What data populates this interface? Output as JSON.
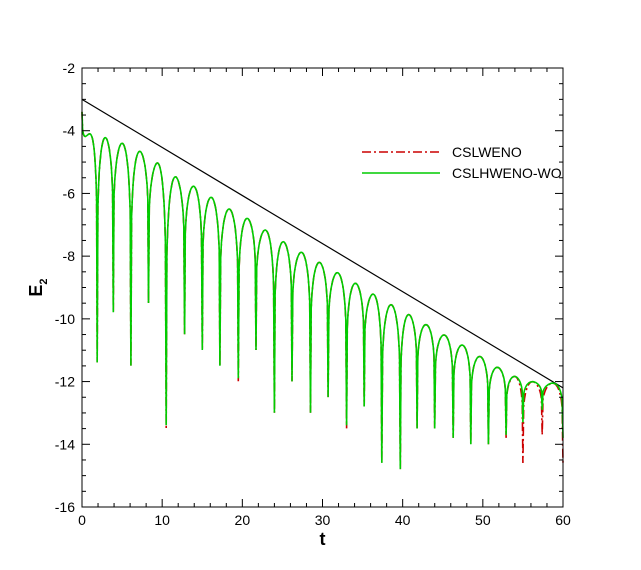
{
  "chart_data": {
    "type": "line",
    "title": "",
    "xlabel": "t",
    "ylabel_main": "E",
    "ylabel_sub": "2",
    "xlim": [
      0,
      60
    ],
    "ylim": [
      -16,
      -2
    ],
    "xticks": [
      0,
      10,
      20,
      30,
      40,
      50,
      60
    ],
    "yticks": [
      -16,
      -14,
      -12,
      -10,
      -8,
      -6,
      -4,
      -2
    ],
    "x_minor_step": 2,
    "y_minor_step": 0.5,
    "grid": false,
    "legend_position": "top-right",
    "series": [
      {
        "name": "",
        "role": "reference-line",
        "color": "#000000",
        "style": "solid",
        "x": [
          0,
          60
        ],
        "y": [
          -3.0,
          -12.2
        ]
      },
      {
        "name": "CSLWENO",
        "color": "#cc0000",
        "style": "dashdot",
        "peaks_x": [
          1.5,
          5.0,
          8.0,
          11.5,
          14.5,
          18.0,
          21.0,
          24.5,
          27.5,
          31.0,
          34.0,
          37.5,
          41.0,
          44.0,
          47.5,
          50.5,
          53.5,
          56.0,
          58.5
        ],
        "peaks_y": [
          -4.1,
          -4.4,
          -4.75,
          -5.45,
          -5.85,
          -6.45,
          -6.85,
          -7.45,
          -7.9,
          -8.4,
          -8.85,
          -9.4,
          -9.9,
          -10.35,
          -10.85,
          -11.35,
          -11.8,
          -12.0,
          -12.05
        ],
        "dips_x": [
          0,
          1.9,
          3.9,
          6.1,
          8.3,
          10.5,
          12.8,
          15.0,
          17.2,
          19.5,
          21.7,
          24.0,
          26.2,
          28.5,
          30.7,
          33.0,
          35.2,
          37.4,
          39.7,
          41.8,
          44.0,
          46.3,
          48.5,
          50.7,
          52.9,
          55.0,
          57.4,
          60.0
        ],
        "dips_y": [
          -3.4,
          -11.4,
          -9.8,
          -11.5,
          -9.5,
          -13.5,
          -10.5,
          -11.0,
          -11.5,
          -12.0,
          -11.0,
          -13.0,
          -12.0,
          -13.0,
          -12.5,
          -13.5,
          -12.8,
          -14.6,
          -14.8,
          -13.5,
          -13.5,
          -13.8,
          -14.0,
          -14.0,
          -13.8,
          -14.6,
          -13.7,
          -14.6
        ]
      },
      {
        "name": "CSLHWENO-WO",
        "color": "#00cc00",
        "style": "solid",
        "peaks_x": [
          1.5,
          5.0,
          8.0,
          11.5,
          14.5,
          18.0,
          21.0,
          24.5,
          27.5,
          31.0,
          34.0,
          37.5,
          41.0,
          44.0,
          47.5,
          50.5,
          53.5,
          56.0,
          58.5
        ],
        "peaks_y": [
          -4.1,
          -4.4,
          -4.75,
          -5.45,
          -5.85,
          -6.45,
          -6.85,
          -7.45,
          -7.9,
          -8.4,
          -8.85,
          -9.4,
          -9.9,
          -10.35,
          -10.85,
          -11.35,
          -11.8,
          -12.0,
          -12.05
        ],
        "dips_x": [
          0,
          1.9,
          3.9,
          6.1,
          8.3,
          10.5,
          12.8,
          15.0,
          17.2,
          19.5,
          21.7,
          24.0,
          26.2,
          28.5,
          30.7,
          33.0,
          35.2,
          37.4,
          39.7,
          41.8,
          44.0,
          46.3,
          48.5,
          50.7,
          52.9,
          55.0,
          57.4,
          60.0
        ],
        "dips_y": [
          -3.4,
          -11.4,
          -9.8,
          -11.5,
          -9.5,
          -13.4,
          -10.5,
          -11.0,
          -11.5,
          -11.9,
          -11.0,
          -13.0,
          -12.0,
          -13.0,
          -12.5,
          -13.4,
          -12.8,
          -14.6,
          -14.8,
          -13.5,
          -13.5,
          -13.8,
          -14.0,
          -14.0,
          -13.7,
          -13.3,
          -12.9,
          -13.8
        ]
      }
    ]
  }
}
